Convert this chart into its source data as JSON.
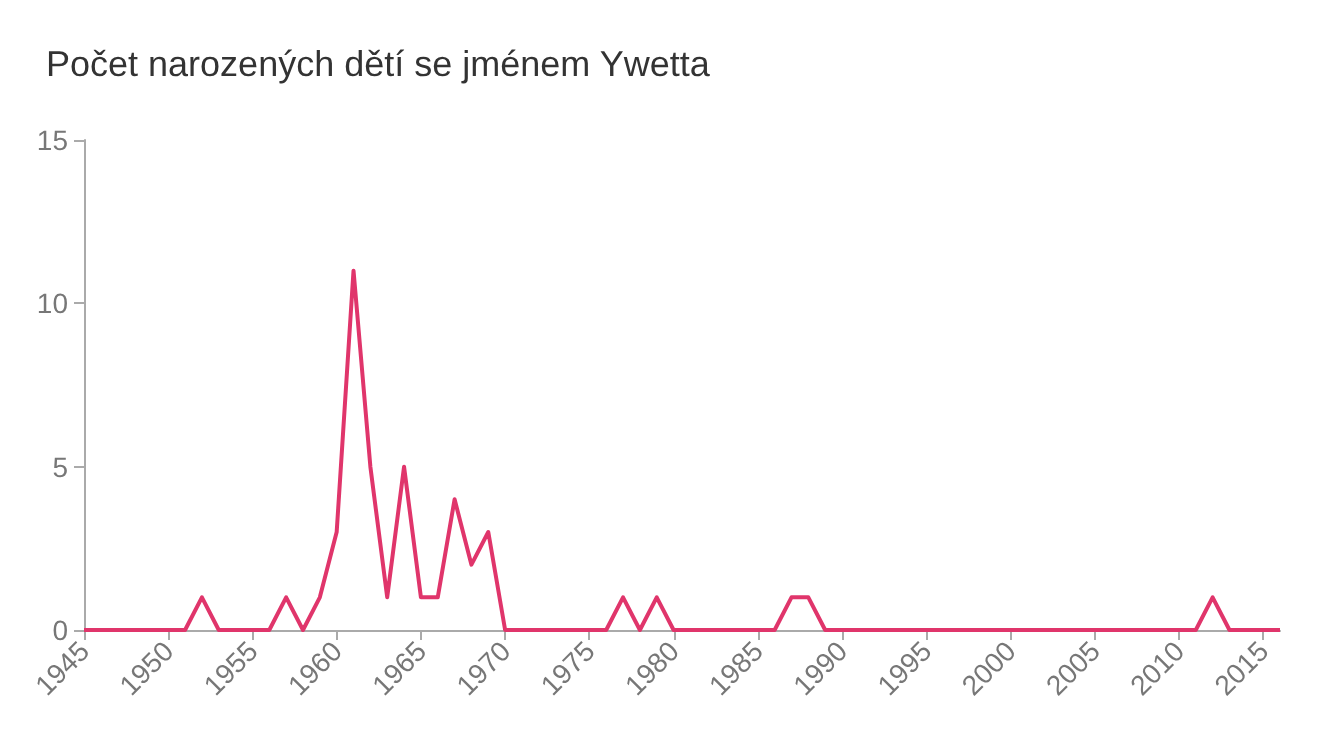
{
  "chart_data": {
    "type": "line",
    "title": "Počet narozených dětí se jménem Ywetta",
    "x": [
      1945,
      1946,
      1947,
      1948,
      1949,
      1950,
      1951,
      1952,
      1953,
      1954,
      1955,
      1956,
      1957,
      1958,
      1959,
      1960,
      1961,
      1962,
      1963,
      1964,
      1965,
      1966,
      1967,
      1968,
      1969,
      1970,
      1971,
      1972,
      1973,
      1974,
      1975,
      1976,
      1977,
      1978,
      1979,
      1980,
      1981,
      1982,
      1983,
      1984,
      1985,
      1986,
      1987,
      1988,
      1989,
      1990,
      1991,
      1992,
      1993,
      1994,
      1995,
      1996,
      1997,
      1998,
      1999,
      2000,
      2001,
      2002,
      2003,
      2004,
      2005,
      2006,
      2007,
      2008,
      2009,
      2010,
      2011,
      2012,
      2013,
      2014,
      2015,
      2016
    ],
    "series": [
      {
        "color": "#e0356b",
        "values": [
          0,
          0,
          0,
          0,
          0,
          0,
          0,
          1,
          0,
          0,
          0,
          0,
          1,
          0,
          1,
          3,
          11,
          5,
          1,
          5,
          1,
          1,
          4,
          2,
          3,
          0,
          0,
          0,
          0,
          0,
          0,
          0,
          1,
          0,
          1,
          0,
          0,
          0,
          0,
          0,
          0,
          0,
          1,
          1,
          0,
          0,
          0,
          0,
          0,
          0,
          0,
          0,
          0,
          0,
          0,
          0,
          0,
          0,
          0,
          0,
          0,
          0,
          0,
          0,
          0,
          0,
          0,
          1,
          0,
          0,
          0,
          0
        ]
      }
    ],
    "xlim": [
      1945,
      2016
    ],
    "xticks": [
      1945,
      1950,
      1955,
      1960,
      1965,
      1970,
      1975,
      1980,
      1985,
      1990,
      1995,
      2000,
      2005,
      2010,
      2015
    ],
    "ylim": [
      0,
      15
    ],
    "yticks": [
      0,
      5,
      10,
      15
    ],
    "grid": false,
    "marker": "none",
    "line_style": "solid"
  }
}
